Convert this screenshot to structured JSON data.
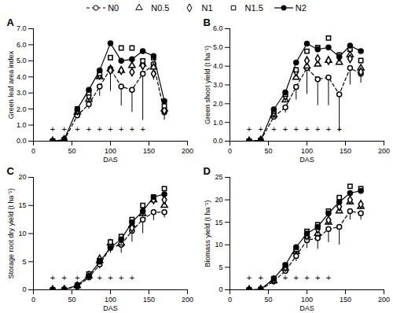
{
  "chart_data": [
    {
      "type": "line",
      "title": "A",
      "legend": "top",
      "x_label": "DAS",
      "y_label": "Green leaf area index",
      "xlim": [
        0,
        200
      ],
      "xticks": [
        0,
        50,
        100,
        150,
        200
      ],
      "ylim": [
        0,
        7
      ],
      "yticks": [
        0,
        1,
        2,
        3,
        4,
        5,
        6,
        7
      ],
      "x": [
        25,
        40,
        57,
        72,
        86,
        100,
        114,
        128,
        142,
        156,
        170
      ],
      "annotations": {
        "text": "+",
        "x": [
          25,
          40,
          57,
          72,
          86,
          100,
          114,
          128,
          142
        ]
      },
      "series": [
        {
          "name": "N0",
          "color": "#000000",
          "marker": "open circle",
          "line_style": "dashed",
          "values": [
            0,
            0.05,
            1.6,
            2.3,
            3.4,
            4.5,
            3.4,
            3.2,
            4.2,
            4.8,
            1.8
          ],
          "errors": [
            null,
            null,
            null,
            0.3,
            0.6,
            1.4,
            1.2,
            1.4,
            2.9,
            1.0,
            0.5
          ]
        },
        {
          "name": "N0.5",
          "color": "#000000",
          "marker": "open triangle",
          "line_style": "none",
          "values": [
            0,
            0.1,
            1.8,
            2.6,
            4.0,
            4.5,
            4.4,
            4.7,
            4.8,
            4.6,
            2.0
          ]
        },
        {
          "name": "N1",
          "color": "#000000",
          "marker": "open diamond",
          "line_style": "none",
          "values": [
            0,
            0.1,
            1.9,
            2.8,
            4.1,
            4.4,
            4.4,
            4.3,
            4.7,
            4.2,
            1.9
          ]
        },
        {
          "name": "N1.5",
          "color": "#000000",
          "marker": "open square",
          "line_style": "none",
          "values": [
            0,
            0.1,
            2.0,
            3.0,
            4.2,
            5.2,
            5.8,
            5.8,
            5.0,
            5.2,
            2.2
          ]
        },
        {
          "name": "N2",
          "color": "#000000",
          "marker": "filled circle",
          "line_style": "solid",
          "values": [
            0,
            0.1,
            2.0,
            3.2,
            4.4,
            6.1,
            5.0,
            5.1,
            5.6,
            5.3,
            2.5
          ]
        }
      ]
    },
    {
      "type": "line",
      "title": "B",
      "x_label": "DAS",
      "y_label": "Green shoot yield (t ha⁻¹)",
      "xlim": [
        0,
        200
      ],
      "xticks": [
        0,
        50,
        100,
        150,
        200
      ],
      "ylim": [
        0,
        6
      ],
      "yticks": [
        0,
        1,
        2,
        3,
        4,
        5,
        6
      ],
      "x": [
        25,
        40,
        57,
        72,
        86,
        100,
        114,
        128,
        142,
        156,
        170
      ],
      "annotations": {
        "text": "+",
        "x": [
          25,
          40,
          57,
          72,
          86,
          100,
          114,
          128,
          142
        ]
      },
      "series": [
        {
          "name": "N0",
          "color": "#000000",
          "marker": "open circle",
          "line_style": "dashed",
          "values": [
            0,
            0.05,
            1.3,
            1.8,
            2.9,
            3.9,
            3.3,
            3.4,
            2.5,
            3.9,
            3.6
          ],
          "errors": [
            null,
            null,
            null,
            0.3,
            0.7,
            1.4,
            1.4,
            1.5,
            2.0,
            0.9,
            0.5
          ]
        },
        {
          "name": "N0.5",
          "color": "#000000",
          "marker": "open triangle",
          "line_style": "none",
          "values": [
            0,
            0.05,
            1.4,
            2.2,
            3.4,
            4.0,
            4.1,
            4.3,
            4.2,
            4.6,
            3.9
          ]
        },
        {
          "name": "N1",
          "color": "#000000",
          "marker": "open diamond",
          "line_style": "none",
          "values": [
            0,
            0.05,
            1.5,
            2.4,
            3.7,
            4.3,
            4.4,
            4.3,
            4.5,
            4.4,
            3.7
          ]
        },
        {
          "name": "N1.5",
          "color": "#000000",
          "marker": "open square",
          "line_style": "none",
          "values": [
            0,
            0.05,
            1.6,
            2.5,
            3.8,
            4.8,
            5.0,
            5.5,
            4.6,
            4.9,
            4.3
          ]
        },
        {
          "name": "N2",
          "color": "#000000",
          "marker": "filled circle",
          "line_style": "solid",
          "values": [
            0,
            0.05,
            1.7,
            2.6,
            4.2,
            5.2,
            4.9,
            5.0,
            4.5,
            5.1,
            4.8
          ]
        }
      ]
    },
    {
      "type": "line",
      "title": "C",
      "x_label": "DAS",
      "y_label": "Storage root dry yield (t ha⁻¹)",
      "xlim": [
        0,
        200
      ],
      "xticks": [
        0,
        50,
        100,
        150,
        200
      ],
      "ylim": [
        0,
        20
      ],
      "yticks": [
        0,
        5,
        10,
        15,
        20
      ],
      "x": [
        25,
        40,
        57,
        72,
        86,
        100,
        114,
        128,
        142,
        156,
        170
      ],
      "annotations": {
        "text": "+",
        "x": [
          25,
          40,
          57,
          72,
          86,
          100,
          114,
          128
        ]
      },
      "series": [
        {
          "name": "N0",
          "color": "#000000",
          "marker": "open circle",
          "line_style": "dashed",
          "values": [
            0,
            0.05,
            0.6,
            2.2,
            4.5,
            7.5,
            8.0,
            10.5,
            12.5,
            13.8,
            13.8
          ],
          "errors": [
            null,
            null,
            null,
            0.3,
            0.8,
            1.0,
            1.5,
            2.0,
            2.5,
            1.5,
            1.0
          ]
        },
        {
          "name": "N0.5",
          "color": "#000000",
          "marker": "open triangle",
          "line_style": "none",
          "values": [
            0,
            0.05,
            0.7,
            2.5,
            5.2,
            8.3,
            8.3,
            11.5,
            13.5,
            16.0,
            15.0
          ]
        },
        {
          "name": "N1",
          "color": "#000000",
          "marker": "open diamond",
          "line_style": "none",
          "values": [
            0,
            0.05,
            0.7,
            2.6,
            5.5,
            8.0,
            9.0,
            11.0,
            14.0,
            16.0,
            16.0
          ]
        },
        {
          "name": "N1.5",
          "color": "#000000",
          "marker": "open square",
          "line_style": "none",
          "values": [
            0,
            0.05,
            0.8,
            2.8,
            5.2,
            8.5,
            9.5,
            12.5,
            15.0,
            16.5,
            18.0
          ]
        },
        {
          "name": "N2",
          "color": "#000000",
          "marker": "filled circle",
          "line_style": "solid",
          "values": [
            0,
            0.05,
            0.8,
            2.5,
            5.0,
            7.5,
            9.0,
            12.0,
            14.0,
            16.5,
            17.0
          ]
        }
      ]
    },
    {
      "type": "line",
      "title": "D",
      "x_label": "DAS",
      "y_label": "Biomass yield (t ha⁻¹)",
      "xlim": [
        0,
        200
      ],
      "xticks": [
        0,
        50,
        100,
        150,
        200
      ],
      "ylim": [
        0,
        25
      ],
      "yticks": [
        0,
        5,
        10,
        15,
        20,
        25
      ],
      "x": [
        25,
        40,
        57,
        72,
        86,
        100,
        114,
        128,
        142,
        156,
        170
      ],
      "annotations": {
        "text": "+",
        "x": [
          25,
          40,
          57,
          72,
          86,
          100,
          114,
          128
        ]
      },
      "series": [
        {
          "name": "N0",
          "color": "#000000",
          "marker": "open circle",
          "line_style": "dashed",
          "values": [
            0,
            0.05,
            1.9,
            4.2,
            7.5,
            11.0,
            11.5,
            13.5,
            14.0,
            17.5,
            17.0
          ],
          "errors": [
            null,
            null,
            null,
            0.5,
            1.2,
            1.8,
            2.5,
            3.0,
            4.0,
            2.0,
            1.5
          ]
        },
        {
          "name": "N0.5",
          "color": "#000000",
          "marker": "open triangle",
          "line_style": "none",
          "values": [
            0,
            0.1,
            2.0,
            4.8,
            8.5,
            12.0,
            12.5,
            15.0,
            17.5,
            19.5,
            18.5
          ]
        },
        {
          "name": "N1",
          "color": "#000000",
          "marker": "open diamond",
          "line_style": "none",
          "values": [
            0,
            0.1,
            2.2,
            5.0,
            9.0,
            12.0,
            13.5,
            15.5,
            18.5,
            20.0,
            19.0
          ]
        },
        {
          "name": "N1.5",
          "color": "#000000",
          "marker": "open square",
          "line_style": "none",
          "values": [
            0,
            0.1,
            2.5,
            5.5,
            9.0,
            13.0,
            14.5,
            17.5,
            20.5,
            23.0,
            22.5
          ]
        },
        {
          "name": "N2",
          "color": "#000000",
          "marker": "filled circle",
          "line_style": "solid",
          "values": [
            0,
            0.1,
            2.5,
            5.5,
            9.5,
            12.5,
            14.0,
            17.0,
            19.5,
            21.5,
            22.0
          ]
        }
      ]
    }
  ]
}
